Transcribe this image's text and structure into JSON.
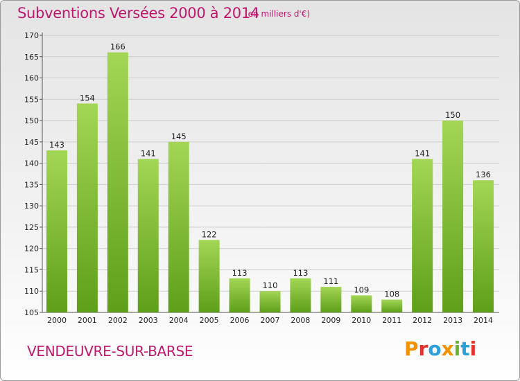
{
  "header": {
    "title": "Subventions Versées 2000 à 2014",
    "subtitle": "(en milliers d'€)"
  },
  "footer": {
    "city": "VENDEUVRE-SUR-BARSE",
    "logo": "Proxiti"
  },
  "colors": {
    "title": "#c0176d",
    "bar_top": "#a3d655",
    "bar_bottom": "#5e9f19",
    "grid": "#cccccc",
    "logo_letters": [
      "#f39200",
      "#e4332f",
      "#2d9fd9",
      "#f39200",
      "#67b32e",
      "#2d9fd9",
      "#e4332f"
    ]
  },
  "chart_data": {
    "type": "bar",
    "title": "Subventions Versées 2000 à 2014",
    "subtitle": "(en milliers d'€)",
    "categories": [
      "2000",
      "2001",
      "2002",
      "2003",
      "2004",
      "2005",
      "2006",
      "2007",
      "2008",
      "2009",
      "2010",
      "2011",
      "2012",
      "2013",
      "2014"
    ],
    "values": [
      143,
      154,
      166,
      141,
      145,
      122,
      113,
      110,
      113,
      111,
      109,
      108,
      141,
      150,
      136
    ],
    "data_labels": [
      "143",
      "154",
      "166",
      "141",
      "145",
      "122",
      "113",
      "110",
      "113",
      "111",
      "109",
      "108",
      "141",
      "150",
      "136"
    ],
    "ylim": [
      105,
      170
    ],
    "yticks": [
      "105",
      "110",
      "115",
      "120",
      "125",
      "130",
      "135",
      "140",
      "145",
      "150",
      "155",
      "160",
      "165",
      "170"
    ],
    "ytick_values": [
      105,
      110,
      115,
      120,
      125,
      130,
      135,
      140,
      145,
      150,
      155,
      160,
      165,
      170
    ],
    "grid": true,
    "legend": "none"
  }
}
